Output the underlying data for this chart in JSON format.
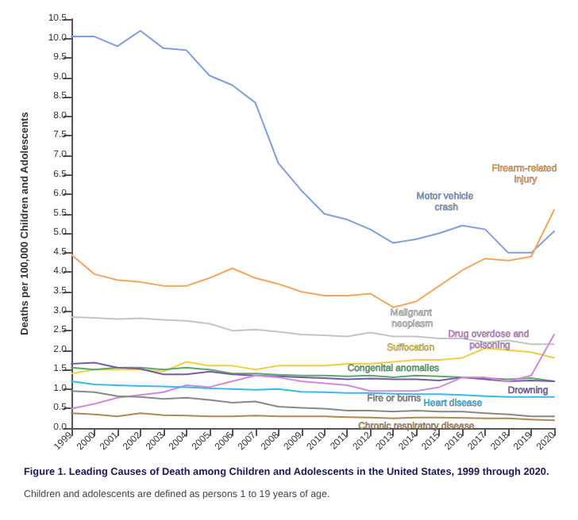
{
  "chart_data": {
    "type": "line",
    "title": "Figure 1. Leading Causes of Death among Children and Adolescents in the United States, 1999 through 2020.",
    "subtitle": "Children and adolescents are defined as persons 1 to 19 years of age.",
    "ylabel": "Deaths per 100,000 Children and Adolescents",
    "categories": [
      "1999",
      "2000",
      "2001",
      "2002",
      "2003",
      "2004",
      "2005",
      "2006",
      "2007",
      "2008",
      "2009",
      "2010",
      "2011",
      "2012",
      "2013",
      "2014",
      "2015",
      "2016",
      "2017",
      "2018",
      "2019",
      "2020"
    ],
    "ylim": [
      0,
      10.5
    ],
    "yticks": [
      {
        "value": 0,
        "label": "0.0"
      },
      {
        "value": 0.5,
        "label": "0.5"
      },
      {
        "value": 1,
        "label": "1.0"
      },
      {
        "value": 1.5,
        "label": "1.5"
      },
      {
        "value": 2,
        "label": "2.0"
      },
      {
        "value": 2.5,
        "label": "2.5"
      },
      {
        "value": 3,
        "label": "3.0"
      },
      {
        "value": 3.5,
        "label": "3.5"
      },
      {
        "value": 4,
        "label": "4.0"
      },
      {
        "value": 4.5,
        "label": "4.5"
      },
      {
        "value": 5,
        "label": "5.0"
      },
      {
        "value": 5.5,
        "label": "5.5"
      },
      {
        "value": 6,
        "label": "6.0"
      },
      {
        "value": 6.5,
        "label": "6.5"
      },
      {
        "value": 7,
        "label": "7.0"
      },
      {
        "value": 7.5,
        "label": "7.5"
      },
      {
        "value": 8,
        "label": "8.0"
      },
      {
        "value": 8.5,
        "label": "8.5"
      },
      {
        "value": 9,
        "label": "9.0"
      },
      {
        "value": 9.5,
        "label": "9.5"
      },
      {
        "value": 10,
        "label": "10.0"
      },
      {
        "value": 10.5,
        "label": "10.5"
      }
    ],
    "grid": false,
    "legend": false,
    "marker": "none",
    "line_style": "solid",
    "series": [
      {
        "name": "Motor vehicle crash",
        "color": "#7f9fd8",
        "values": [
          10.05,
          10.05,
          9.8,
          10.2,
          9.75,
          9.7,
          9.05,
          8.8,
          8.35,
          6.8,
          6.1,
          5.5,
          5.35,
          5.1,
          4.75,
          4.85,
          5.0,
          5.2,
          5.1,
          4.5,
          4.5,
          5.05
        ]
      },
      {
        "name": "Firearm-related injury",
        "color": "#f5a55a",
        "values": [
          4.45,
          3.95,
          3.8,
          3.75,
          3.65,
          3.65,
          3.85,
          4.1,
          3.85,
          3.7,
          3.5,
          3.4,
          3.4,
          3.45,
          3.1,
          3.25,
          3.65,
          4.05,
          4.35,
          4.3,
          4.4,
          5.6
        ]
      },
      {
        "name": "Malignant neoplasm",
        "color": "#c4c4c4",
        "values": [
          2.85,
          2.83,
          2.8,
          2.82,
          2.78,
          2.75,
          2.68,
          2.5,
          2.53,
          2.47,
          2.4,
          2.38,
          2.35,
          2.45,
          2.35,
          2.35,
          2.3,
          2.3,
          2.2,
          2.25,
          2.15,
          2.15
        ]
      },
      {
        "name": "Suffocation",
        "color": "#f0d040",
        "values": [
          1.4,
          1.5,
          1.5,
          1.5,
          1.45,
          1.7,
          1.6,
          1.6,
          1.5,
          1.6,
          1.6,
          1.6,
          1.65,
          1.65,
          1.7,
          1.75,
          1.75,
          1.8,
          2.05,
          2.0,
          1.95,
          1.8
        ]
      },
      {
        "name": "Congenital anomalies",
        "color": "#5aa86a",
        "values": [
          1.55,
          1.5,
          1.55,
          1.55,
          1.5,
          1.55,
          1.5,
          1.4,
          1.4,
          1.37,
          1.35,
          1.35,
          1.33,
          1.35,
          1.3,
          1.35,
          1.33,
          1.3,
          1.28,
          1.25,
          1.28,
          1.2
        ]
      },
      {
        "name": "Drowning",
        "color": "#7a5aa8",
        "values": [
          1.65,
          1.68,
          1.55,
          1.52,
          1.38,
          1.38,
          1.45,
          1.38,
          1.35,
          1.33,
          1.3,
          1.28,
          1.25,
          1.27,
          1.25,
          1.25,
          1.22,
          1.3,
          1.25,
          1.2,
          1.22,
          1.2
        ]
      },
      {
        "name": "Drug overdose and poisoning",
        "color": "#d08ad8",
        "values": [
          0.5,
          0.62,
          0.78,
          0.85,
          0.92,
          1.1,
          1.05,
          1.2,
          1.35,
          1.3,
          1.2,
          1.15,
          1.1,
          0.95,
          0.95,
          0.95,
          1.05,
          1.3,
          1.3,
          1.2,
          1.35,
          2.4
        ]
      },
      {
        "name": "Heart disease",
        "color": "#3ab8f0",
        "values": [
          1.2,
          1.12,
          1.1,
          1.08,
          1.07,
          1.05,
          1.02,
          1.0,
          0.98,
          1.0,
          0.93,
          0.92,
          0.9,
          0.9,
          0.88,
          0.87,
          0.87,
          0.85,
          0.82,
          0.8,
          0.8,
          0.8
        ]
      },
      {
        "name": "Fire or burns",
        "color": "#888888",
        "values": [
          0.95,
          0.92,
          0.82,
          0.8,
          0.75,
          0.78,
          0.72,
          0.65,
          0.68,
          0.55,
          0.52,
          0.5,
          0.45,
          0.45,
          0.42,
          0.45,
          0.42,
          0.42,
          0.38,
          0.35,
          0.3,
          0.3
        ]
      },
      {
        "name": "Chronic respiratory disease",
        "color": "#b08850",
        "values": [
          0.38,
          0.35,
          0.3,
          0.38,
          0.33,
          0.32,
          0.3,
          0.3,
          0.32,
          0.3,
          0.3,
          0.3,
          0.28,
          0.27,
          0.25,
          0.27,
          0.27,
          0.26,
          0.25,
          0.25,
          0.22,
          0.2
        ]
      }
    ]
  }
}
